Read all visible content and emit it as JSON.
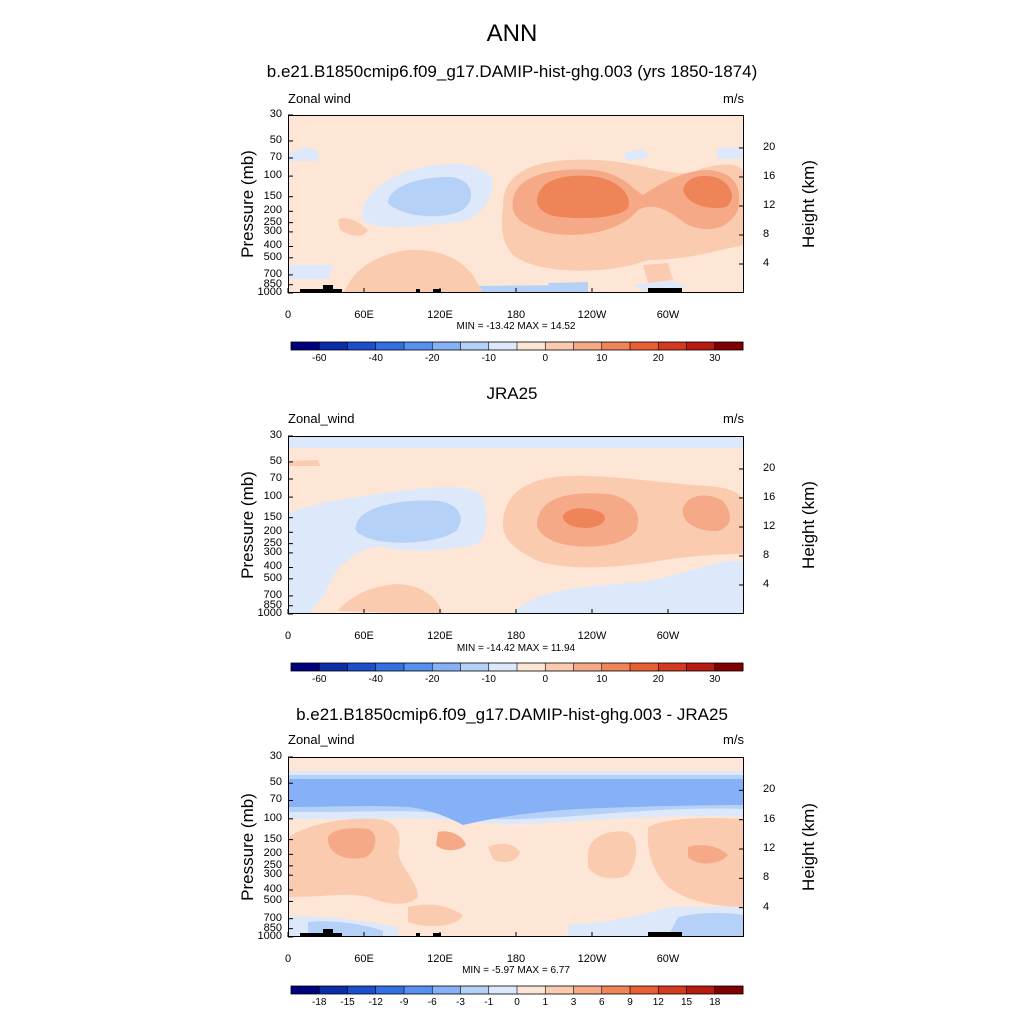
{
  "main_title": "ANN",
  "panels": [
    {
      "title": "b.e21.B1850cmip6.f09_g17.DAMIP-hist-ghg.003 (yrs 1850-1874)",
      "left_label": "Zonal wind",
      "right_label": "m/s",
      "minmax": "MIN = -13.42  MAX =  14.52",
      "ylabel": "Pressure (mb)",
      "ylabel_right": "Height (km)"
    },
    {
      "title": "JRA25",
      "left_label": "Zonal_wind",
      "right_label": "m/s",
      "minmax": "MIN = -14.42  MAX =  11.94",
      "ylabel": "Pressure (mb)",
      "ylabel_right": "Height (km)"
    },
    {
      "title": "b.e21.B1850cmip6.f09_g17.DAMIP-hist-ghg.003 - JRA25",
      "left_label": "Zonal_wind",
      "right_label": "m/s",
      "minmax": "MIN = -5.97  MAX =  6.77",
      "ylabel": "Pressure (mb)",
      "ylabel_right": "Height (km)"
    }
  ],
  "chart_data": [
    {
      "type": "heatmap",
      "title": "b.e21.B1850cmip6.f09_g17.DAMIP-hist-ghg.003 (yrs 1850-1874)",
      "xlabel": "",
      "ylabel": "Pressure (mb)",
      "ylabel_right": "Height (km)",
      "x_ticks": [
        "0",
        "60E",
        "120E",
        "180",
        "120W",
        "60W"
      ],
      "y_ticks": [
        "30",
        "50",
        "70",
        "100",
        "150",
        "200",
        "250",
        "300",
        "400",
        "500",
        "700",
        "850",
        "1000"
      ],
      "y_ticks_right": [
        "20",
        "16",
        "12",
        "8",
        "4"
      ],
      "min": -13.42,
      "max": 14.52,
      "units": "m/s",
      "colorbar_labels": [
        "-60",
        "-40",
        "-20",
        "-10",
        "0",
        "10",
        "20",
        "30"
      ],
      "colorbar_colors": [
        "#00007f",
        "#0c2ea8",
        "#1b4fcc",
        "#3370e0",
        "#5890ef",
        "#87b1f6",
        "#b6d1f8",
        "#dde9fa",
        "#fde6d6",
        "#fbcbb0",
        "#f6a986",
        "#f08459",
        "#e85f34",
        "#d63a1e",
        "#b61c10",
        "#7f0000"
      ]
    },
    {
      "type": "heatmap",
      "title": "JRA25",
      "xlabel": "",
      "ylabel": "Pressure (mb)",
      "ylabel_right": "Height (km)",
      "x_ticks": [
        "0",
        "60E",
        "120E",
        "180",
        "120W",
        "60W"
      ],
      "y_ticks": [
        "30",
        "50",
        "70",
        "100",
        "150",
        "200",
        "250",
        "300",
        "400",
        "500",
        "700",
        "850",
        "1000"
      ],
      "y_ticks_right": [
        "20",
        "16",
        "12",
        "8",
        "4"
      ],
      "min": -14.42,
      "max": 11.94,
      "units": "m/s",
      "colorbar_labels": [
        "-60",
        "-40",
        "-20",
        "-10",
        "0",
        "10",
        "20",
        "30"
      ],
      "colorbar_colors": [
        "#00007f",
        "#0c2ea8",
        "#1b4fcc",
        "#3370e0",
        "#5890ef",
        "#87b1f6",
        "#b6d1f8",
        "#dde9fa",
        "#fde6d6",
        "#fbcbb0",
        "#f6a986",
        "#f08459",
        "#e85f34",
        "#d63a1e",
        "#b61c10",
        "#7f0000"
      ]
    },
    {
      "type": "heatmap",
      "title": "b.e21.B1850cmip6.f09_g17.DAMIP-hist-ghg.003 - JRA25",
      "xlabel": "",
      "ylabel": "Pressure (mb)",
      "ylabel_right": "Height (km)",
      "x_ticks": [
        "0",
        "60E",
        "120E",
        "180",
        "120W",
        "60W"
      ],
      "y_ticks": [
        "30",
        "50",
        "70",
        "100",
        "150",
        "200",
        "250",
        "300",
        "400",
        "500",
        "700",
        "850",
        "1000"
      ],
      "y_ticks_right": [
        "20",
        "16",
        "12",
        "8",
        "4"
      ],
      "min": -5.97,
      "max": 6.77,
      "units": "m/s",
      "colorbar_labels": [
        "-18",
        "-15",
        "-12",
        "-9",
        "-6",
        "-3",
        "-1",
        "0",
        "1",
        "3",
        "6",
        "9",
        "12",
        "15",
        "18"
      ],
      "colorbar_colors": [
        "#00007f",
        "#0c2ea8",
        "#1b4fcc",
        "#3370e0",
        "#5890ef",
        "#87b1f6",
        "#b6d1f8",
        "#dde9fa",
        "#fde6d6",
        "#fbcbb0",
        "#f6a986",
        "#f08459",
        "#e85f34",
        "#d63a1e",
        "#b61c10",
        "#7f0000"
      ]
    }
  ]
}
